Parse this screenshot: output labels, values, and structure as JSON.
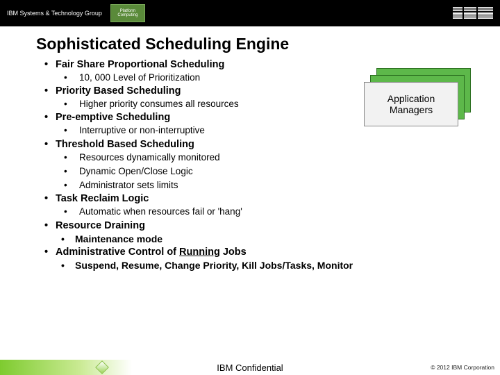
{
  "banner": {
    "group_label": "IBM Systems & Technology Group",
    "platform_logo_text": "Platform Computing",
    "ibm_logo_alt": "IBM"
  },
  "title": "Sophisticated Scheduling Engine",
  "bullets": [
    {
      "label": "Fair Share Proportional Scheduling",
      "subs": [
        "10, 000 Level of Prioritization"
      ]
    },
    {
      "label": "Priority Based Scheduling",
      "subs": [
        "Higher priority consumes all resources"
      ]
    },
    {
      "label": "Pre-emptive Scheduling",
      "subs": [
        "Interruptive or non-interruptive"
      ]
    },
    {
      "label": "Threshold Based Scheduling",
      "subs": [
        "Resources dynamically monitored",
        "Dynamic Open/Close Logic",
        "Administrator sets limits"
      ]
    },
    {
      "label": "Task Reclaim Logic",
      "subs": [
        "Automatic when resources fail or 'hang'"
      ]
    },
    {
      "label": "Resource Draining",
      "compact": true,
      "subs": [
        "Maintenance mode"
      ]
    },
    {
      "label_pre": "Administrative Control of ",
      "label_underlined": "Running",
      "label_post": " Jobs",
      "compact": true,
      "subs": [
        "Suspend, Resume, Change Priority, Kill Jobs/Tasks, Monitor"
      ]
    }
  ],
  "callout": {
    "label": "Application Managers"
  },
  "footer": {
    "confidential": "IBM Confidential",
    "copyright": "© 2012 IBM Corporation"
  },
  "colors": {
    "banner_bg": "#000000",
    "platform_bg": "#5a8a3a",
    "appmgr_green": "#5db84a",
    "appmgr_front": "#f2f2f2",
    "footer_grad_start": "#7ecb2f"
  }
}
